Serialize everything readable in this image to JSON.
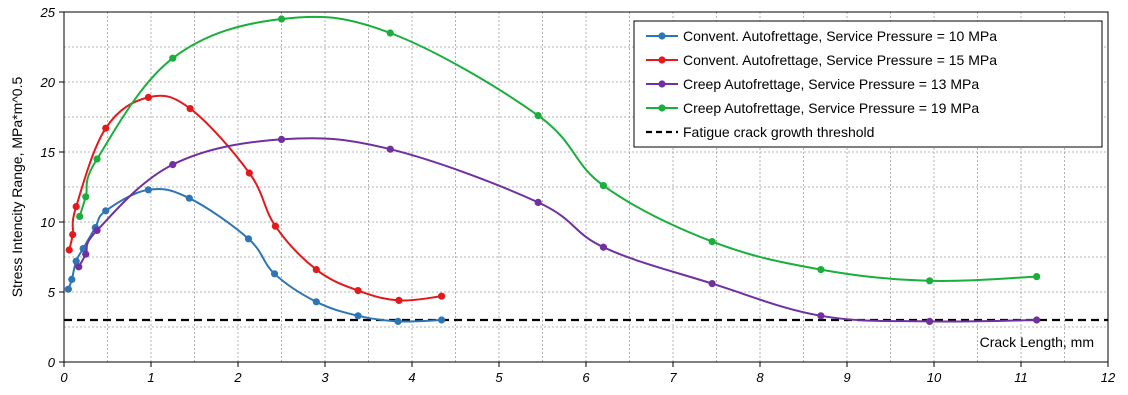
{
  "chart_data": {
    "type": "line",
    "title": "",
    "xlabel": "Crack Length, mm",
    "ylabel": "Stress Intencity Range, MPa*m^0.5",
    "xlim": [
      0,
      12
    ],
    "ylim": [
      0,
      25
    ],
    "x_ticks": [
      "0",
      "1",
      "2",
      "3",
      "4",
      "5",
      "6",
      "7",
      "8",
      "9",
      "10",
      "11",
      "12"
    ],
    "y_ticks": [
      "0",
      "5",
      "10",
      "15",
      "20",
      "25"
    ],
    "grid": true,
    "legend_position": "top-right",
    "series": [
      {
        "name": "Convent. Autofrettage, Service Pressure = 10 MPa",
        "color": "#2E75B6",
        "x": [
          0.05,
          0.09,
          0.14,
          0.22,
          0.36,
          0.48,
          0.97,
          1.44,
          2.12,
          2.42,
          2.9,
          3.38,
          3.84,
          4.34
        ],
        "y": [
          5.2,
          5.9,
          7.2,
          8.1,
          9.6,
          10.8,
          12.3,
          11.7,
          8.8,
          6.3,
          4.3,
          3.3,
          2.9,
          3.0
        ]
      },
      {
        "name": "Convent. Autofrettage, Service Pressure = 15 MPa",
        "color": "#E31A1C",
        "x": [
          0.06,
          0.1,
          0.14,
          0.48,
          0.97,
          1.45,
          2.13,
          2.43,
          2.9,
          3.38,
          3.85,
          4.34
        ],
        "y": [
          8.0,
          9.1,
          11.1,
          16.7,
          18.9,
          18.1,
          13.5,
          9.7,
          6.6,
          5.1,
          4.4,
          4.7
        ]
      },
      {
        "name": "Creep Autofrettage, Service Pressure = 13 MPa",
        "color": "#7030A0",
        "x": [
          0.17,
          0.25,
          0.38,
          1.25,
          2.5,
          3.75,
          5.45,
          6.2,
          7.45,
          8.7,
          9.95,
          11.18
        ],
        "y": [
          6.8,
          7.7,
          9.4,
          14.1,
          15.9,
          15.2,
          11.4,
          8.2,
          5.6,
          3.3,
          2.9,
          3.0
        ]
      },
      {
        "name": "Creep Autofrettage, Service Pressure = 19 MPa",
        "color": "#1AAE3C",
        "x": [
          0.18,
          0.25,
          0.38,
          1.25,
          2.5,
          3.75,
          5.45,
          6.2,
          7.45,
          8.7,
          9.95,
          11.18
        ],
        "y": [
          10.4,
          11.8,
          14.5,
          21.7,
          24.5,
          23.5,
          17.6,
          12.6,
          8.6,
          6.6,
          5.8,
          6.1
        ]
      }
    ],
    "threshold": {
      "name": "Fatigue crack growth threshold",
      "y": 3.0,
      "color": "#000000"
    }
  }
}
